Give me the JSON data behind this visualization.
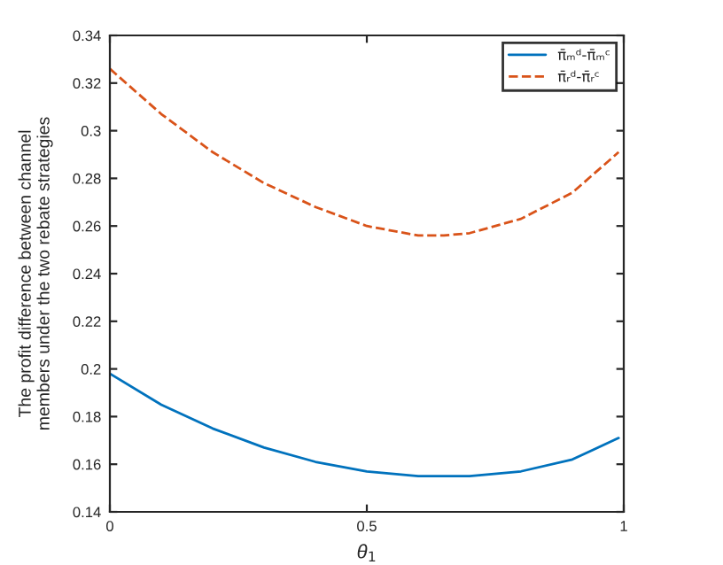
{
  "chart_data": {
    "type": "line",
    "xlabel": "θ$_{1}$",
    "ylabel": "The profit difference between channel\nmembers under the two rebate strategies",
    "xlim": [
      0,
      1
    ],
    "xticks": [
      0,
      0.5,
      1
    ],
    "ylim": [
      0.14,
      0.34
    ],
    "yticks": [
      0.14,
      0.16,
      0.18,
      0.2,
      0.22,
      0.24,
      0.26,
      0.28,
      0.3,
      0.32,
      0.34
    ],
    "grid": false,
    "legend": "top right",
    "series": [
      {
        "name": "π̄ₘᵈ-π̄ₘᶜ",
        "color": "#0072bd",
        "line_style": "solid",
        "x": [
          0,
          0.1,
          0.2,
          0.3,
          0.4,
          0.5,
          0.6,
          0.7,
          0.8,
          0.9,
          0.99
        ],
        "values": [
          0.198,
          0.185,
          0.175,
          0.167,
          0.161,
          0.157,
          0.155,
          0.155,
          0.157,
          0.162,
          0.171
        ]
      },
      {
        "name": "π̄ᵣᵈ-π̄ᵣᶜ",
        "color": "#d95319",
        "line_style": "dashed",
        "x": [
          0,
          0.1,
          0.2,
          0.3,
          0.4,
          0.5,
          0.6,
          0.65,
          0.7,
          0.8,
          0.9,
          0.99
        ],
        "values": [
          0.326,
          0.307,
          0.291,
          0.278,
          0.268,
          0.26,
          0.256,
          0.256,
          0.257,
          0.263,
          0.274,
          0.291
        ]
      }
    ]
  }
}
